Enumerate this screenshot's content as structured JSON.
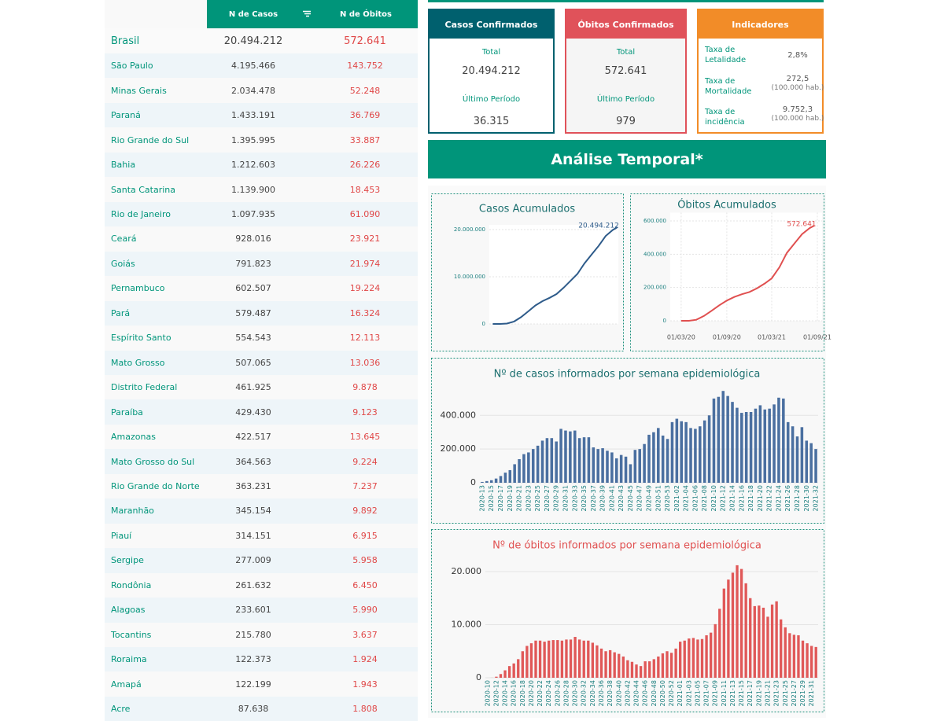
{
  "table": {
    "headers": [
      "N de Casos",
      "N de Óbitos"
    ],
    "rows": [
      [
        "Brasil",
        "20.494.212",
        "572.641"
      ],
      [
        "São Paulo",
        "4.195.466",
        "143.752"
      ],
      [
        "Minas Gerais",
        "2.034.478",
        "52.248"
      ],
      [
        "Paraná",
        "1.433.191",
        "36.769"
      ],
      [
        "Rio Grande do Sul",
        "1.395.995",
        "33.887"
      ],
      [
        "Bahia",
        "1.212.603",
        "26.226"
      ],
      [
        "Santa Catarina",
        "1.139.900",
        "18.453"
      ],
      [
        "Rio de Janeiro",
        "1.097.935",
        "61.090"
      ],
      [
        "Ceará",
        "928.016",
        "23.921"
      ],
      [
        "Goiás",
        "791.823",
        "21.974"
      ],
      [
        "Pernambuco",
        "602.507",
        "19.224"
      ],
      [
        "Pará",
        "579.487",
        "16.324"
      ],
      [
        "Espírito Santo",
        "554.543",
        "12.113"
      ],
      [
        "Mato Grosso",
        "507.065",
        "13.036"
      ],
      [
        "Distrito Federal",
        "461.925",
        "9.878"
      ],
      [
        "Paraíba",
        "429.430",
        "9.123"
      ],
      [
        "Amazonas",
        "422.517",
        "13.645"
      ],
      [
        "Mato Grosso do Sul",
        "364.563",
        "9.224"
      ],
      [
        "Rio Grande do Norte",
        "363.231",
        "7.237"
      ],
      [
        "Maranhão",
        "345.154",
        "9.892"
      ],
      [
        "Piauí",
        "314.151",
        "6.915"
      ],
      [
        "Sergipe",
        "277.009",
        "5.958"
      ],
      [
        "Rondônia",
        "261.632",
        "6.450"
      ],
      [
        "Alagoas",
        "233.601",
        "5.990"
      ],
      [
        "Tocantins",
        "215.780",
        "3.637"
      ],
      [
        "Roraima",
        "122.373",
        "1.924"
      ],
      [
        "Amapá",
        "122.199",
        "1.943"
      ],
      [
        "Acre",
        "87.638",
        "1.808"
      ]
    ]
  },
  "cards": [
    {
      "title": "Casos Confirmados",
      "total_label": "Total",
      "total": "20.494.212",
      "period_label": "Último Período",
      "period": "36.315",
      "color": "#00606e"
    },
    {
      "title": "Óbitos Confirmados",
      "total_label": "Total",
      "total": "572.641",
      "period_label": "Último Período",
      "period": "979",
      "color": "#e0525a"
    }
  ],
  "indicators": {
    "title": "Indicadores",
    "color": "#f28c28",
    "items": [
      {
        "label": "Taxa de Letalidade",
        "value": "2,8%"
      },
      {
        "label": "Taxa de Mortalidade",
        "value": "272,5",
        "note": "(100.000 hab.)"
      },
      {
        "label": "Taxa de incidência",
        "value": "9.752,3",
        "note": "(100.000 hab.)"
      }
    ]
  },
  "section_title": "Análise Temporal*",
  "chart_data": [
    {
      "type": "line",
      "title": "Casos Acumulados",
      "color": "#2e5b8a",
      "grid": true,
      "x": [
        "2020-03-01",
        "2020-04-01",
        "2020-05-01",
        "2020-06-01",
        "2020-07-01",
        "2020-08-01",
        "2020-09-01",
        "2020-10-01",
        "2020-11-01",
        "2020-12-01",
        "2021-01-01",
        "2021-02-01",
        "2021-03-01",
        "2021-04-01",
        "2021-05-01",
        "2021-06-01",
        "2021-07-01",
        "2021-08-01",
        "2021-08-21"
      ],
      "values": [
        0,
        5700,
        87000,
        515000,
        1440000,
        2660000,
        3910000,
        4810000,
        5530000,
        6340000,
        7680000,
        9200000,
        10590000,
        12840000,
        14660000,
        16550000,
        18620000,
        19920000,
        20494212
      ],
      "last_label": "20.494.212",
      "xlim": [
        "2020-02-15",
        "2021-08-25"
      ],
      "ylim": [
        0,
        21000000
      ],
      "yticks": [
        0,
        {
          "value": 10000000,
          "label": "10.000.000"
        },
        {
          "value": 20000000,
          "label": "20.000.000"
        }
      ]
    },
    {
      "type": "line",
      "title": "Óbitos Acumulados",
      "color": "#e05050",
      "grid": true,
      "x": [
        "2020-03-01",
        "2020-04-01",
        "2020-05-01",
        "2020-06-01",
        "2020-07-01",
        "2020-08-01",
        "2020-09-01",
        "2020-10-01",
        "2020-11-01",
        "2020-12-01",
        "2021-01-01",
        "2021-02-01",
        "2021-03-01",
        "2021-04-01",
        "2021-05-01",
        "2021-06-01",
        "2021-07-01",
        "2021-08-01",
        "2021-08-21"
      ],
      "values": [
        0,
        200,
        6000,
        29300,
        59600,
        92500,
        121400,
        143000,
        159500,
        173000,
        195400,
        224500,
        255000,
        321500,
        407600,
        465200,
        520100,
        556800,
        572641
      ],
      "last_label": "572.641",
      "xlim": [
        "2020-01-17",
        "2021-09-20"
      ],
      "xticks": [
        {
          "value": "2020-03-01",
          "label": "01/03/20"
        },
        {
          "value": "2020-09-01",
          "label": "01/09/20"
        },
        {
          "value": "2021-03-01",
          "label": "01/03/21"
        },
        {
          "value": "2021-09-01",
          "label": "01/09/21"
        }
      ],
      "ylim": [
        0,
        650000
      ],
      "yticks": [
        0,
        {
          "value": 200000,
          "label": "200.000"
        },
        {
          "value": 400000,
          "label": "400.000"
        },
        {
          "value": 600000,
          "label": "600.000"
        }
      ]
    },
    {
      "type": "bar",
      "title": "Nº de casos informados por semana epidemiológica",
      "color": "#4a6fa0",
      "grid": true,
      "categories": [
        "2020-13",
        null,
        "2020-15",
        null,
        "2020-17",
        null,
        "2020-19",
        null,
        "2020-21",
        null,
        "2020-23",
        null,
        "2020-25",
        null,
        "2020-27",
        null,
        "2020-29",
        null,
        "2020-31",
        null,
        "2020-33",
        null,
        "2020-35",
        null,
        "2020-37",
        null,
        "2020-39",
        null,
        "2020-41",
        null,
        "2020-43",
        null,
        "2020-45",
        null,
        "2020-47",
        null,
        "2020-49",
        null,
        "2020-51",
        null,
        "2020-53",
        null,
        "2021-02",
        null,
        "2021-04",
        null,
        "2021-06",
        null,
        "2021-08",
        null,
        "2021-10",
        null,
        "2021-12",
        null,
        "2021-14",
        null,
        "2021-16",
        null,
        "2021-18",
        null,
        "2021-20",
        null,
        "2021-22",
        null,
        "2021-24",
        null,
        "2021-26",
        null,
        "2021-28",
        null,
        "2021-30",
        null,
        "2021-32"
      ],
      "values": [
        5000,
        10000,
        15000,
        25000,
        40000,
        60000,
        75000,
        110000,
        140000,
        170000,
        180000,
        200000,
        220000,
        250000,
        265000,
        265000,
        245000,
        320000,
        310000,
        305000,
        310000,
        265000,
        270000,
        270000,
        210000,
        200000,
        205000,
        190000,
        180000,
        145000,
        165000,
        155000,
        110000,
        195000,
        200000,
        230000,
        285000,
        300000,
        325000,
        280000,
        260000,
        360000,
        380000,
        365000,
        360000,
        325000,
        320000,
        335000,
        370000,
        400000,
        500000,
        510000,
        545000,
        515000,
        480000,
        445000,
        415000,
        420000,
        420000,
        440000,
        460000,
        435000,
        440000,
        465000,
        505000,
        500000,
        360000,
        335000,
        275000,
        330000,
        250000,
        235000,
        200000
      ],
      "ylim": [
        0,
        560000
      ],
      "yticks": [
        0,
        {
          "value": 200000,
          "label": "200.000"
        },
        {
          "value": 400000,
          "label": "400.000"
        }
      ]
    },
    {
      "type": "bar",
      "title": "Nº de óbitos informados por semana epidemiológica",
      "color": "#e05858",
      "grid": true,
      "categories": [
        "2020-10",
        null,
        "2020-12",
        null,
        "2020-14",
        null,
        "2020-16",
        null,
        "2020-18",
        null,
        "2020-20",
        null,
        "2020-22",
        null,
        "2020-24",
        null,
        "2020-26",
        null,
        "2020-28",
        null,
        "2020-30",
        null,
        "2020-32",
        null,
        "2020-34",
        null,
        "2020-36",
        null,
        "2020-38",
        null,
        "2020-40",
        null,
        "2020-42",
        null,
        "2020-44",
        null,
        "2020-46",
        null,
        "2020-48",
        null,
        "2020-50",
        null,
        "2020-52",
        null,
        "2021-01",
        null,
        "2021-03",
        null,
        "2021-05",
        null,
        "2021-07",
        null,
        "2021-09",
        null,
        "2021-11",
        null,
        "2021-13",
        null,
        "2021-15",
        null,
        "2021-17",
        null,
        "2021-19",
        null,
        "2021-21",
        null,
        "2021-23",
        null,
        "2021-25",
        null,
        "2021-27",
        null,
        "2021-29",
        null,
        "2021-31",
        null
      ],
      "values": [
        0,
        10,
        200,
        700,
        1400,
        2200,
        2700,
        3500,
        5000,
        6000,
        6500,
        7000,
        7000,
        6800,
        7000,
        7100,
        7100,
        7000,
        7200,
        7200,
        7700,
        7200,
        7000,
        7000,
        6600,
        6100,
        5500,
        5000,
        5200,
        4800,
        4500,
        4000,
        3300,
        3000,
        2500,
        2200,
        3100,
        3100,
        3500,
        4000,
        4600,
        5000,
        4700,
        5500,
        6800,
        7000,
        7400,
        7500,
        7200,
        7300,
        8000,
        8500,
        10100,
        13000,
        16800,
        18500,
        19800,
        21200,
        20500,
        17800,
        15000,
        13500,
        13600,
        13200,
        11500,
        13800,
        14400,
        11000,
        9500,
        8400,
        8100,
        8000,
        7000,
        6500,
        6000,
        5800
      ],
      "ylim": [
        0,
        22000
      ],
      "yticks": [
        0,
        {
          "value": 10000,
          "label": "10.000"
        },
        {
          "value": 20000,
          "label": "20.000"
        }
      ]
    }
  ]
}
